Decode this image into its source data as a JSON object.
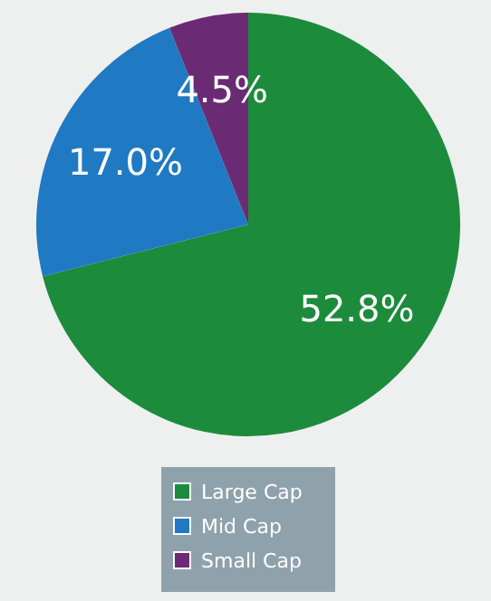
{
  "chart_data": {
    "type": "pie",
    "categories": [
      "Large Cap",
      "Mid Cap",
      "Small Cap"
    ],
    "values": [
      52.8,
      17.0,
      4.5
    ],
    "colors": [
      "#1d8b3c",
      "#1f7ac3",
      "#6b2a74"
    ],
    "value_labels": [
      "52.8%",
      "17.0%",
      "4.5%"
    ],
    "legend": "bottom"
  }
}
